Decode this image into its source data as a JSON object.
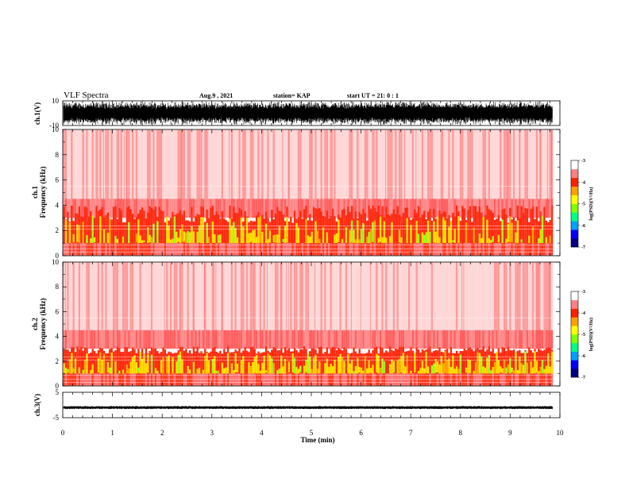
{
  "header": {
    "title": "VLF Spectra",
    "date": "Aug.9 , 2021",
    "station": "station= KAP",
    "start": "start UT = 21: 0 : 1"
  },
  "colorbar": {
    "label": "log(PSD)(V²/Hz)",
    "ticks": [
      "-3",
      "-4",
      "-5",
      "-6",
      "-7"
    ],
    "colors": [
      "#000080",
      "#0000ff",
      "#00a0ff",
      "#00ff80",
      "#80ff00",
      "#ffff00",
      "#ffa000",
      "#ff2000",
      "#ff8080",
      "#ffffff"
    ]
  },
  "chart_data": [
    {
      "type": "line",
      "ylabel": "ch.1(V)",
      "ylim": [
        -10,
        10
      ],
      "yticks": [
        "10",
        "-10"
      ],
      "xlim": [
        0,
        10
      ],
      "description_note": ""
    },
    {
      "type": "heatmap",
      "ylabel": "ch.1\nFrequency (kHz)",
      "ylabel_top": "ch.1",
      "ylabel_main": "Frequency (kHz)",
      "ylim": [
        0,
        10
      ],
      "yticks": [
        "0",
        "2",
        "4",
        "6",
        "8",
        "10"
      ],
      "xlim": [
        0,
        10
      ],
      "zlim": [
        -7,
        -3
      ]
    },
    {
      "type": "heatmap",
      "ylabel_top": "ch.2",
      "ylabel_main": "Frequency (kHz)",
      "ylim": [
        0,
        10
      ],
      "yticks": [
        "0",
        "2",
        "4",
        "6",
        "8",
        "10"
      ],
      "xlim": [
        0,
        10
      ],
      "zlim": [
        -7,
        -3
      ]
    },
    {
      "type": "line",
      "ylabel": "ch.3(V)",
      "ylim": [
        -5,
        5
      ],
      "yticks": [
        "5",
        "-5"
      ],
      "xlim": [
        0,
        10
      ],
      "xlabel": "Time (min)",
      "xticks": [
        "0",
        "1",
        "2",
        "3",
        "4",
        "5",
        "6",
        "7",
        "8",
        "9",
        "10"
      ]
    }
  ]
}
